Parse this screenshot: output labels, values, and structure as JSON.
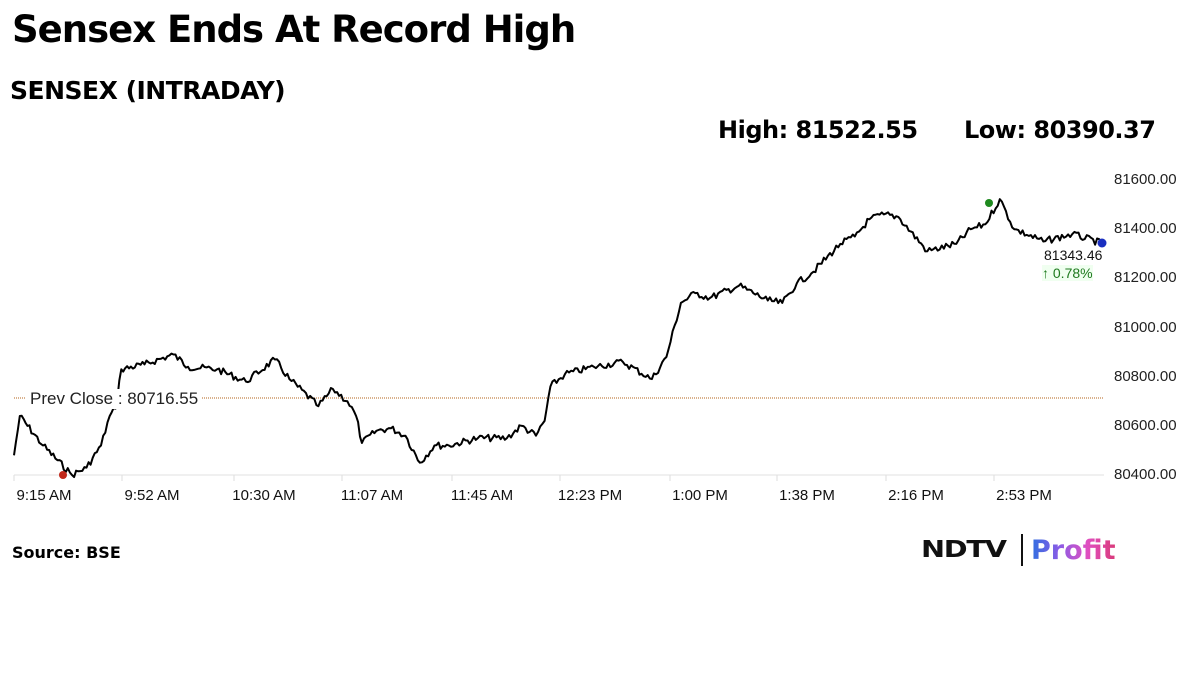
{
  "header": {
    "title": "Sensex Ends At Record High",
    "subtitle": "SENSEX (INTRADAY)",
    "high_label": "High: 81522.55",
    "low_label": "Low: 80390.37"
  },
  "footer": {
    "source": "Source: BSE",
    "logo_left": "NDTV",
    "logo_right": "Profit"
  },
  "annotations": {
    "prev_close_label": "Prev Close : 80716.55",
    "last_value": "81343.46",
    "last_change": "↑ 0.78%"
  },
  "colors": {
    "line": "#000000",
    "prev_close_line": "#b5651d",
    "high_marker": "#1f8a1f",
    "low_marker": "#c0281a",
    "last_marker": "#1a2fc0",
    "change_positive": "#1e7a1e"
  },
  "chart_data": {
    "type": "line",
    "title": "SENSEX (INTRADAY)",
    "xlabel": "",
    "ylabel": "",
    "ylim": [
      80400,
      81600
    ],
    "yticks": [
      "81600.00",
      "81400.00",
      "81200.00",
      "81000.00",
      "80800.00",
      "80600.00",
      "80400.00"
    ],
    "xticks": [
      "9:15 AM",
      "9:52 AM",
      "10:30 AM",
      "11:07 AM",
      "11:45 AM",
      "12:23 PM",
      "1:00 PM",
      "1:38 PM",
      "2:16 PM",
      "2:53 PM"
    ],
    "grid": false,
    "legend": "none",
    "prev_close": 80716.55,
    "high": 81522.55,
    "low": 80390.37,
    "last": 81343.46,
    "change_pct": 0.78,
    "series": [
      {
        "name": "SENSEX",
        "x": [
          "9:15",
          "9:17",
          "9:25",
          "9:35",
          "9:40",
          "9:45",
          "9:48",
          "9:50",
          "9:52",
          "10:00",
          "10:10",
          "10:15",
          "10:25",
          "10:35",
          "10:45",
          "10:50",
          "11:00",
          "11:05",
          "11:10",
          "11:13",
          "11:15",
          "11:20",
          "11:25",
          "11:30",
          "11:35",
          "11:40",
          "11:45",
          "11:55",
          "12:05",
          "12:10",
          "12:15",
          "12:18",
          "12:20",
          "12:25",
          "12:35",
          "12:45",
          "12:55",
          "13:00",
          "13:05",
          "13:10",
          "13:15",
          "13:25",
          "13:35",
          "13:40",
          "13:45",
          "13:50",
          "14:00",
          "14:05",
          "14:10",
          "14:15",
          "14:20",
          "14:30",
          "14:40",
          "14:45",
          "14:50",
          "14:55",
          "15:00",
          "15:10",
          "15:20",
          "15:30"
        ],
        "values": [
          80480,
          80640,
          80520,
          80400,
          80430,
          80520,
          80640,
          80670,
          80830,
          80850,
          80890,
          80840,
          80830,
          80780,
          80870,
          80790,
          80680,
          80750,
          80700,
          80640,
          80530,
          80580,
          80590,
          80560,
          80450,
          80520,
          80520,
          80550,
          80550,
          80600,
          80560,
          80620,
          80760,
          80810,
          80840,
          80860,
          80790,
          80880,
          81100,
          81140,
          81120,
          81170,
          81110,
          81100,
          81180,
          81220,
          81340,
          81370,
          81440,
          81460,
          81450,
          81310,
          81340,
          81400,
          81420,
          81522,
          81400,
          81350,
          81380,
          81343
        ]
      }
    ]
  }
}
